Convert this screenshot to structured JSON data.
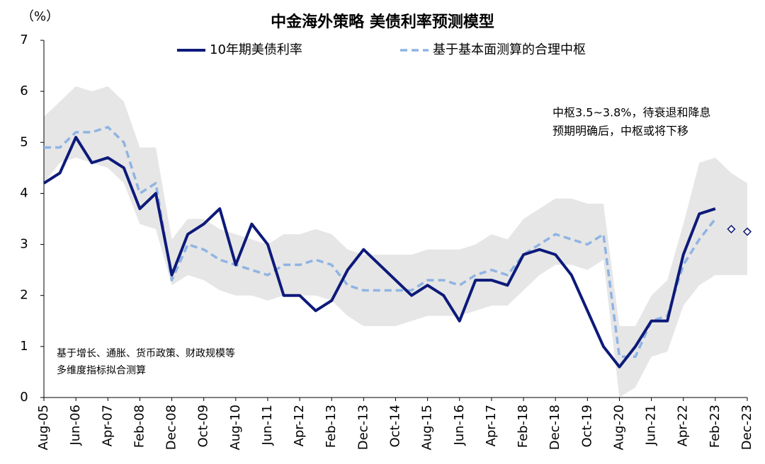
{
  "chart_data": {
    "type": "line",
    "title": "中金海外策略 美债利率预测模型",
    "y_label": "（%）",
    "annotations": [
      {
        "lines": [
          "中枢3.5~3.8%，待衰退和降息",
          "预期明确后，中枢或将下移"
        ]
      },
      {
        "lines": [
          "基于增长、通胀、货币政策、财政规模等",
          "多维度指标拟合测算"
        ]
      }
    ],
    "categories": [
      "Aug-05",
      null,
      "Jun-06",
      null,
      "Apr-07",
      null,
      "Feb-08",
      null,
      "Dec-08",
      null,
      "Oct-09",
      null,
      "Aug-10",
      null,
      "Jun-11",
      null,
      "Apr-12",
      null,
      "Feb-13",
      null,
      "Dec-13",
      null,
      "Oct-14",
      null,
      "Aug-15",
      null,
      "Jun-16",
      null,
      "Apr-17",
      null,
      "Feb-18",
      null,
      "Dec-18",
      null,
      "Oct-19",
      null,
      "Aug-20",
      null,
      "Jun-21",
      null,
      "Apr-22",
      null,
      "Feb-23",
      null,
      "Dec-23"
    ],
    "series": [
      {
        "name": "10年期美债利率",
        "color": "#0d1a7a",
        "style": "solid",
        "values": [
          4.2,
          4.4,
          5.1,
          4.6,
          4.7,
          4.5,
          3.7,
          4.0,
          2.4,
          3.2,
          3.4,
          3.7,
          2.6,
          3.4,
          3.0,
          2.0,
          2.0,
          1.7,
          1.9,
          2.5,
          2.9,
          2.6,
          2.3,
          2.0,
          2.2,
          2.0,
          1.5,
          2.3,
          2.3,
          2.2,
          2.8,
          2.9,
          2.8,
          2.4,
          1.7,
          1.0,
          0.6,
          1.0,
          1.5,
          1.5,
          2.8,
          3.6,
          3.7,
          null,
          null
        ]
      },
      {
        "name": "基于基本面测算的合理中枢",
        "color": "#8fb4e3",
        "style": "dashed",
        "values": [
          4.9,
          4.9,
          5.2,
          5.2,
          5.3,
          5.0,
          4.0,
          4.2,
          2.3,
          3.0,
          2.9,
          2.7,
          2.6,
          2.5,
          2.4,
          2.6,
          2.6,
          2.7,
          2.6,
          2.2,
          2.1,
          2.1,
          2.1,
          2.1,
          2.3,
          2.3,
          2.2,
          2.4,
          2.5,
          2.4,
          2.8,
          3.0,
          3.2,
          3.1,
          3.0,
          3.2,
          0.8,
          0.8,
          1.5,
          1.6,
          2.6,
          3.1,
          3.5,
          null,
          null
        ]
      }
    ],
    "forecast": {
      "color": "#0d1a7a",
      "marker": "diamond",
      "values": [
        null,
        null,
        null,
        null,
        null,
        null,
        null,
        null,
        null,
        null,
        null,
        null,
        null,
        null,
        null,
        null,
        null,
        null,
        null,
        null,
        null,
        null,
        null,
        null,
        null,
        null,
        null,
        null,
        null,
        null,
        null,
        null,
        null,
        null,
        null,
        null,
        null,
        null,
        null,
        null,
        null,
        null,
        null,
        3.3,
        3.25
      ]
    },
    "band": {
      "color": "#e6e6e6",
      "upper": [
        5.5,
        5.8,
        6.1,
        6.0,
        6.1,
        5.8,
        4.9,
        4.9,
        3.1,
        3.5,
        3.5,
        3.3,
        3.2,
        3.1,
        3.0,
        3.2,
        3.2,
        3.3,
        3.2,
        2.9,
        2.8,
        2.8,
        2.8,
        2.8,
        2.9,
        2.9,
        2.9,
        3.0,
        3.2,
        3.1,
        3.5,
        3.7,
        3.9,
        3.9,
        3.8,
        3.8,
        1.4,
        1.4,
        2.0,
        2.3,
        3.4,
        4.6,
        4.7,
        4.4,
        4.2
      ],
      "lower": [
        4.2,
        4.6,
        4.7,
        4.6,
        4.5,
        4.2,
        3.4,
        3.3,
        2.2,
        2.4,
        2.3,
        2.1,
        2.0,
        2.0,
        1.9,
        2.0,
        2.0,
        2.0,
        1.9,
        1.6,
        1.4,
        1.4,
        1.4,
        1.5,
        1.6,
        1.6,
        1.6,
        1.7,
        1.8,
        1.8,
        2.1,
        2.4,
        2.6,
        2.6,
        2.5,
        2.7,
        0.0,
        0.2,
        0.8,
        0.9,
        1.8,
        2.2,
        2.4,
        2.4,
        2.4
      ]
    },
    "ylim": [
      0,
      7
    ],
    "yticks": [
      0,
      1,
      2,
      3,
      4,
      5,
      6,
      7
    ]
  }
}
